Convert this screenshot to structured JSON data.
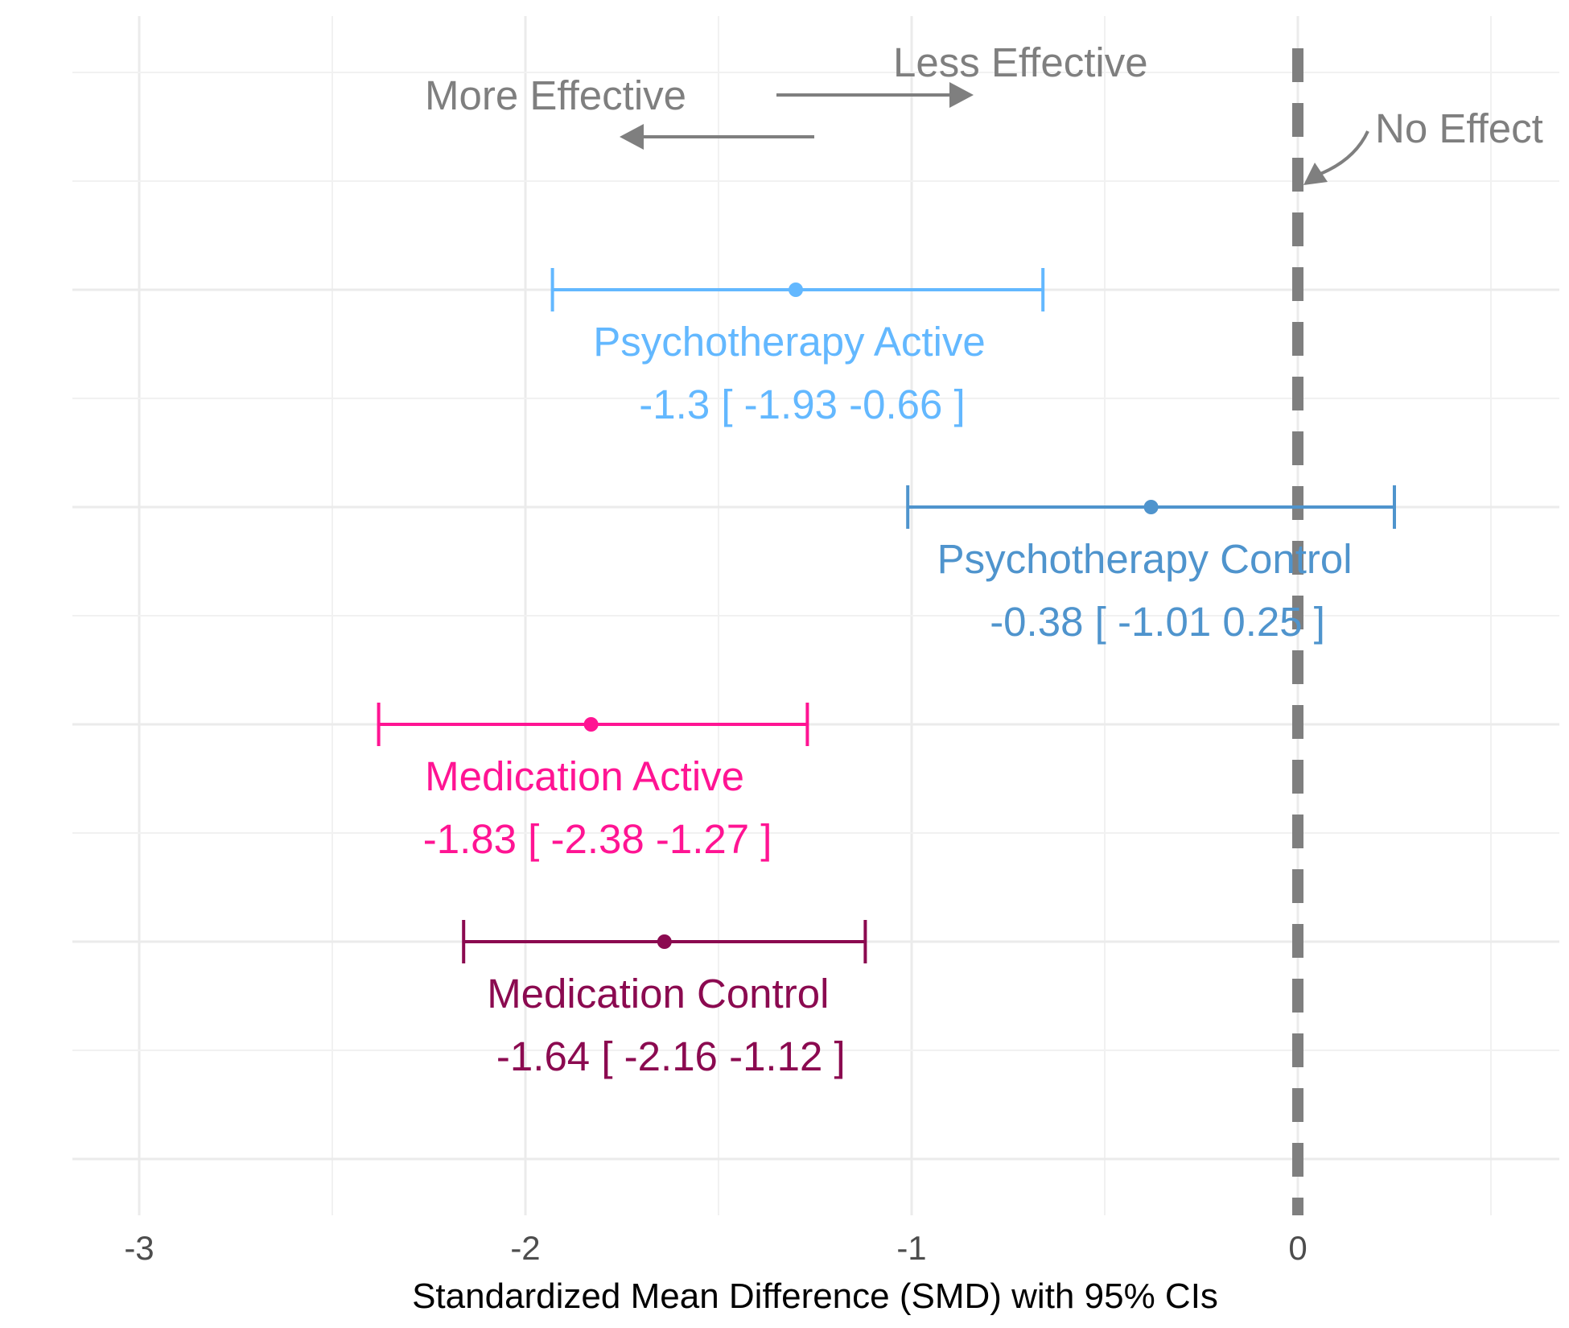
{
  "chart_data": {
    "type": "scatter",
    "subtype": "forest-plot",
    "title": "",
    "xlabel": "Standardized Mean Difference (SMD) with 95% CIs",
    "ylabel": "",
    "xlim": [
      -3.17,
      0.67
    ],
    "x_ticks": [
      -3,
      -2,
      -1,
      0
    ],
    "x_tick_labels": [
      "-3",
      "-2",
      "-1",
      "0"
    ],
    "grid": true,
    "reference_line": {
      "x": 0,
      "style": "dashed",
      "color": "#7f7f7f",
      "label": "No Effect"
    },
    "annotations": {
      "less_effective": "Less Effective",
      "more_effective": "More Effective",
      "no_effect": "No Effect"
    },
    "series": [
      {
        "name": "Psychotherapy Active",
        "estimate": -1.3,
        "lower": -1.93,
        "upper": -0.66,
        "ci_text": "-1.3 [ -1.93 -0.66 ]",
        "color": "#63b8ff"
      },
      {
        "name": "Psychotherapy Control",
        "estimate": -0.38,
        "lower": -1.01,
        "upper": 0.25,
        "ci_text": "-0.38 [ -1.01 0.25 ]",
        "color": "#4f94cd"
      },
      {
        "name": "Medication Active",
        "estimate": -1.83,
        "lower": -2.38,
        "upper": -1.27,
        "ci_text": "-1.83 [ -2.38 -1.27 ]",
        "color": "#ff1493"
      },
      {
        "name": "Medication Control",
        "estimate": -1.64,
        "lower": -2.16,
        "upper": -1.12,
        "ci_text": "-1.64 [ -2.16 -1.12 ]",
        "color": "#8b0a50"
      }
    ]
  }
}
